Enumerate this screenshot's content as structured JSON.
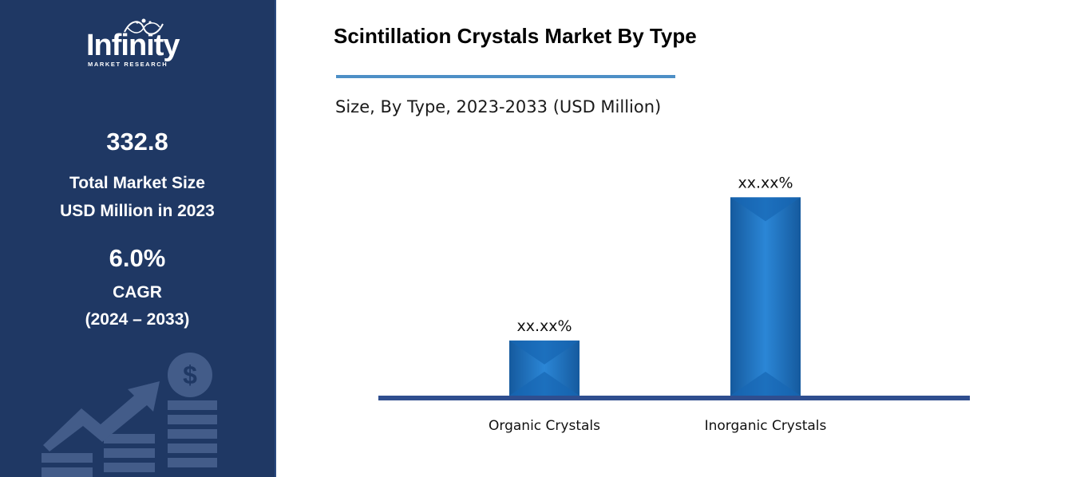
{
  "brand": {
    "name": "Infinity",
    "tagline": "MARKET RESEARCH"
  },
  "stats": {
    "market_size_value": "332.8",
    "market_size_label_line1": "Total Market Size",
    "market_size_label_line2": "USD Million in 2023",
    "cagr_value": "6.0%",
    "cagr_label": "CAGR",
    "cagr_period": "(2024 – 2033)"
  },
  "colors": {
    "sidebar_bg": "#1f3864",
    "bar_fill": "#1f74c4",
    "baseline": "#2f4e8f",
    "title_rule": "#4d8fc6"
  },
  "icons": [
    "dollar-coin-icon",
    "growth-arrow-icon",
    "stacked-bars-icon"
  ],
  "chart_data": {
    "type": "bar",
    "title": "Scintillation Crystals Market By Type",
    "subtitle": "Size, By Type, 2023-2033 (USD Million)",
    "categories": [
      "Organic Crystals",
      "Inorganic Crystals"
    ],
    "values": [
      70,
      252
    ],
    "data_labels": [
      "xx.xx%",
      "xx.xx%"
    ],
    "ylim": [
      0,
      300
    ],
    "grid": false,
    "legend": "none"
  }
}
